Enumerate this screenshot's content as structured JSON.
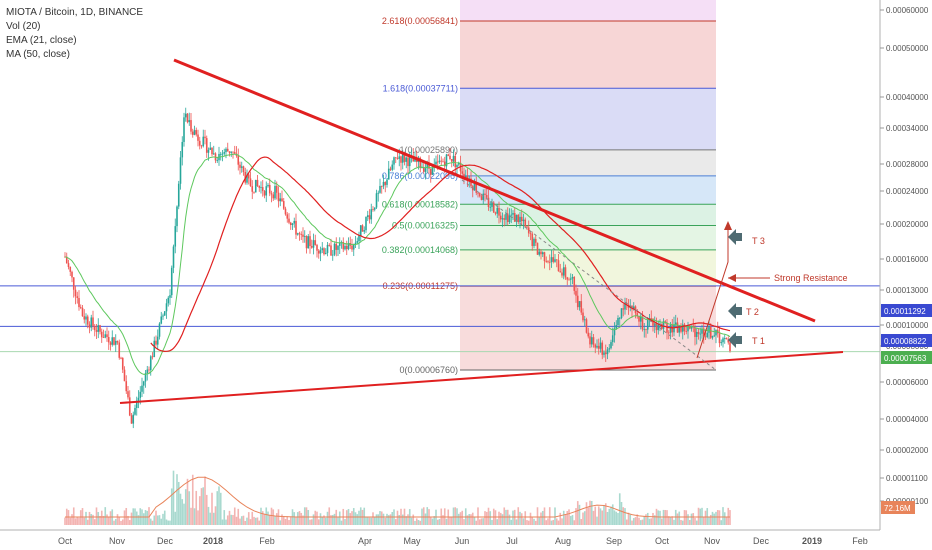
{
  "legend": {
    "title": "MIOTA / Bitcoin, 1D, BINANCE",
    "vol": "Vol (20)",
    "ema": "EMA (21, close)",
    "ma": "MA (50, close)"
  },
  "colors": {
    "up_candle": "#26a69a",
    "down_candle": "#ef5350",
    "trendline": "#e02020",
    "ema": "#5ec85e",
    "ma": "#e02020",
    "fib_lines": "#4a5ad6",
    "volume_ma": "#e8845a"
  },
  "annotations": {
    "t1": "T 1",
    "t2": "T 2",
    "t3": "T 3",
    "strong_resistance": "Strong Resistance"
  },
  "chart_data": {
    "type": "candlestick",
    "x_ticks": [
      "Oct",
      "Nov",
      "Dec",
      "2018",
      "Feb",
      "Apr",
      "May",
      "Jun",
      "Jul",
      "Aug",
      "Sep",
      "Oct",
      "Nov",
      "Dec",
      "2019",
      "Feb"
    ],
    "y_ticks": [
      "0.00060000",
      "0.00050000",
      "0.00040000",
      "0.00034000",
      "0.00028000",
      "0.00024000",
      "0.00020000",
      "0.00016000",
      "0.00013000",
      "0.00010000",
      "0.00008000",
      "0.00006000",
      "0.00004000",
      "0.00002000",
      "0.00001100",
      "0.00000100"
    ],
    "y_scale": "log",
    "price_badges": [
      "0.00011292",
      "0.00008822",
      "0.00007563"
    ],
    "volume_badge": "72.16M",
    "fib_levels": [
      {
        "label": "2.618(0.00056841)",
        "value": 0.00056841
      },
      {
        "label": "1.618(0.00037711)",
        "value": 0.00037711
      },
      {
        "label": "1(0.00025890)",
        "value": 0.0002589
      },
      {
        "label": "0.786(0.00022096)",
        "value": 0.00022096
      },
      {
        "label": "0.618(0.00018582)",
        "value": 0.00018582
      },
      {
        "label": "0.5(0.00016325)",
        "value": 0.00016325
      },
      {
        "label": "0.382(0.00014068)",
        "value": 0.00014068
      },
      {
        "label": "0.236(0.00011275)",
        "value": 0.00011275
      },
      {
        "label": "0(0.00006760)",
        "value": 6.76e-05
      }
    ],
    "legend_entries": [
      "Vol (20)",
      "EMA (21, close)",
      "MA (50, close)"
    ]
  }
}
